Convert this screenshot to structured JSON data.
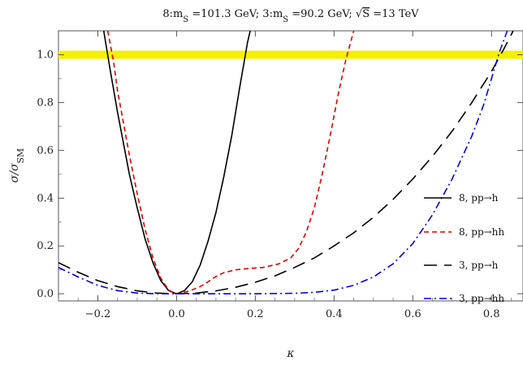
{
  "chart_data": {
    "type": "line",
    "title": "8:m_S =101.3 GeV; 3:m_S =90.2 GeV; √S =13 TeV",
    "title_parts": {
      "p1": "8:m",
      "sub1": "S",
      "p2": " =101.3 GeV; 3:m",
      "sub2": "S",
      "p3": " =90.2 GeV; ",
      "sqrt_arg": "S",
      "p4": " =13 TeV"
    },
    "xlabel": "κ",
    "ylabel_main": "σ/σ",
    "ylabel_sub": "SM",
    "xlim": [
      -0.3,
      0.88
    ],
    "ylim": [
      -0.03,
      1.1
    ],
    "xticks": [
      "-0.2",
      "0.0",
      "0.2",
      "0.4",
      "0.6",
      "0.8"
    ],
    "yticks": [
      "0.0",
      "0.2",
      "0.4",
      "0.6",
      "0.8",
      "1.0"
    ],
    "reference_band": {
      "y": 1.0,
      "color": "#f5f000"
    },
    "legend_position": "right",
    "series": [
      {
        "name": "8, pp→h",
        "color": "#000000",
        "dash": "solid",
        "points": [
          [
            -0.185,
            1.1
          ],
          [
            -0.17,
            0.95
          ],
          [
            -0.15,
            0.76
          ],
          [
            -0.12,
            0.5
          ],
          [
            -0.1,
            0.36
          ],
          [
            -0.08,
            0.23
          ],
          [
            -0.06,
            0.13
          ],
          [
            -0.04,
            0.055
          ],
          [
            -0.02,
            0.013
          ],
          [
            0.0,
            0.0
          ],
          [
            0.02,
            0.013
          ],
          [
            0.04,
            0.05
          ],
          [
            0.06,
            0.12
          ],
          [
            0.08,
            0.22
          ],
          [
            0.1,
            0.34
          ],
          [
            0.12,
            0.49
          ],
          [
            0.14,
            0.66
          ],
          [
            0.16,
            0.86
          ],
          [
            0.18,
            1.05
          ],
          [
            0.187,
            1.1
          ]
        ]
      },
      {
        "name": "8, pp→hh",
        "color": "#e00000",
        "dash": "dashed",
        "points": [
          [
            -0.175,
            1.1
          ],
          [
            -0.16,
            0.97
          ],
          [
            -0.15,
            0.85
          ],
          [
            -0.12,
            0.58
          ],
          [
            -0.1,
            0.42
          ],
          [
            -0.08,
            0.27
          ],
          [
            -0.06,
            0.15
          ],
          [
            -0.04,
            0.065
          ],
          [
            -0.02,
            0.015
          ],
          [
            0.0,
            0.0
          ],
          [
            0.03,
            0.01
          ],
          [
            0.06,
            0.03
          ],
          [
            0.08,
            0.05
          ],
          [
            0.1,
            0.072
          ],
          [
            0.12,
            0.088
          ],
          [
            0.15,
            0.1
          ],
          [
            0.18,
            0.105
          ],
          [
            0.22,
            0.11
          ],
          [
            0.26,
            0.125
          ],
          [
            0.29,
            0.15
          ],
          [
            0.31,
            0.19
          ],
          [
            0.33,
            0.26
          ],
          [
            0.35,
            0.36
          ],
          [
            0.37,
            0.5
          ],
          [
            0.39,
            0.66
          ],
          [
            0.41,
            0.83
          ],
          [
            0.43,
            0.98
          ],
          [
            0.45,
            1.1
          ]
        ]
      },
      {
        "name": "3, pp→h",
        "color": "#000000",
        "dash": "longdash",
        "points": [
          [
            -0.3,
            0.13
          ],
          [
            -0.25,
            0.09
          ],
          [
            -0.2,
            0.055
          ],
          [
            -0.15,
            0.03
          ],
          [
            -0.1,
            0.012
          ],
          [
            -0.05,
            0.003
          ],
          [
            0.0,
            0.0
          ],
          [
            0.05,
            0.003
          ],
          [
            0.1,
            0.012
          ],
          [
            0.15,
            0.027
          ],
          [
            0.2,
            0.048
          ],
          [
            0.25,
            0.075
          ],
          [
            0.3,
            0.11
          ],
          [
            0.35,
            0.15
          ],
          [
            0.4,
            0.2
          ],
          [
            0.45,
            0.255
          ],
          [
            0.5,
            0.32
          ],
          [
            0.55,
            0.395
          ],
          [
            0.6,
            0.48
          ],
          [
            0.65,
            0.575
          ],
          [
            0.7,
            0.68
          ],
          [
            0.75,
            0.8
          ],
          [
            0.8,
            0.93
          ],
          [
            0.83,
            1.02
          ],
          [
            0.855,
            1.1
          ]
        ]
      },
      {
        "name": "3, pp→hh",
        "color": "#0000dd",
        "dash": "dashdot",
        "points": [
          [
            -0.3,
            0.11
          ],
          [
            -0.25,
            0.07
          ],
          [
            -0.2,
            0.035
          ],
          [
            -0.15,
            0.013
          ],
          [
            -0.1,
            0.003
          ],
          [
            -0.05,
            0.0
          ],
          [
            0.0,
            0.0
          ],
          [
            0.1,
            0.0
          ],
          [
            0.2,
            0.0
          ],
          [
            0.3,
            0.002
          ],
          [
            0.35,
            0.006
          ],
          [
            0.4,
            0.015
          ],
          [
            0.45,
            0.035
          ],
          [
            0.5,
            0.07
          ],
          [
            0.55,
            0.125
          ],
          [
            0.6,
            0.21
          ],
          [
            0.65,
            0.33
          ],
          [
            0.7,
            0.48
          ],
          [
            0.75,
            0.66
          ],
          [
            0.78,
            0.79
          ],
          [
            0.8,
            0.9
          ],
          [
            0.82,
            1.01
          ],
          [
            0.84,
            1.1
          ]
        ]
      }
    ]
  }
}
